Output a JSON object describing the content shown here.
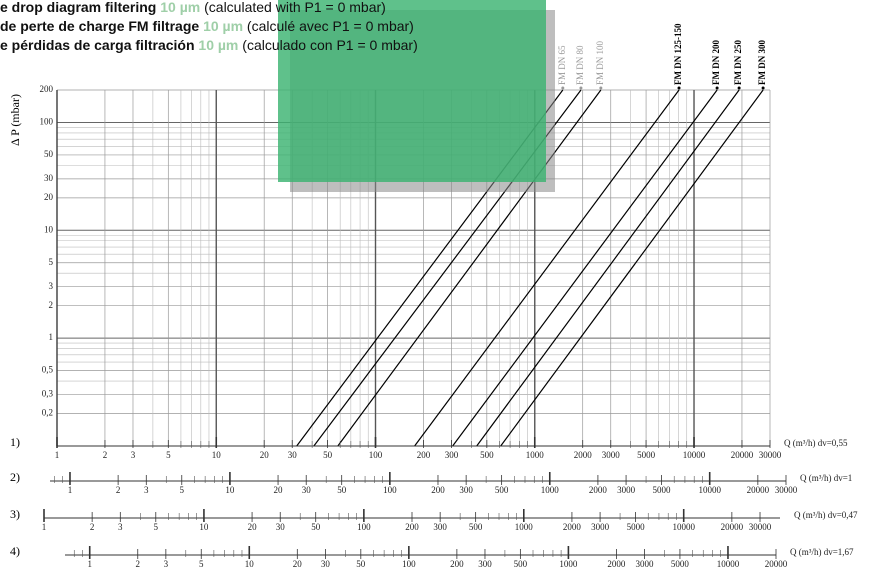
{
  "chart_data": {
    "type": "line",
    "titles": [
      [
        "e drop diagram filtering ",
        "10 µm",
        " (calculated with P1 = 0 mbar)"
      ],
      [
        "de perte de charge FM filtrage ",
        "10 µm",
        " (calculé avec P1 = 0 mbar)"
      ],
      [
        "e pérdidas de carga filtración ",
        "10 µm",
        " (calculado con P1 = 0 mbar)"
      ]
    ],
    "ylabel": "Δ P (mbar)",
    "log_x": true,
    "log_y": true,
    "grid": true,
    "ylim": [
      0.1,
      200
    ],
    "yticks": [
      200,
      100,
      50,
      30,
      20,
      10,
      5,
      3,
      2,
      1,
      {
        "value": 0.5,
        "label": "0,5"
      },
      {
        "value": 0.3,
        "label": "0,3"
      },
      {
        "value": 0.2,
        "label": "0,2"
      }
    ],
    "minor_yticks": [
      0.4,
      0.6,
      0.7,
      0.8,
      0.9,
      4,
      6,
      7,
      8,
      9,
      40,
      60,
      70,
      80,
      90
    ],
    "series": [
      {
        "name": "FM DN 65",
        "color": "#000000",
        "label_color": "#999999",
        "x": [
          32,
          1500
        ],
        "values": [
          0.1,
          200
        ]
      },
      {
        "name": "FM DN 80",
        "color": "#000000",
        "label_color": "#999999",
        "x": [
          41,
          1950
        ],
        "values": [
          0.1,
          200
        ]
      },
      {
        "name": "FM DN 100",
        "color": "#000000",
        "label_color": "#999999",
        "x": [
          58,
          2600
        ],
        "values": [
          0.1,
          200
        ]
      },
      {
        "name": "FM DN 125-150",
        "color": "#000000",
        "label_color": "#000000",
        "x": [
          176,
          8050
        ],
        "values": [
          0.1,
          200
        ]
      },
      {
        "name": "FM DN 200",
        "color": "#000000",
        "label_color": "#000000",
        "x": [
          305,
          13960
        ],
        "values": [
          0.1,
          200
        ]
      },
      {
        "name": "FM DN 250",
        "color": "#000000",
        "label_color": "#000000",
        "x": [
          432,
          19190
        ],
        "values": [
          0.1,
          200
        ]
      },
      {
        "name": "FM DN 300",
        "color": "#000000",
        "label_color": "#000000",
        "x": [
          611,
          27150
        ],
        "values": [
          0.1,
          200
        ]
      }
    ],
    "axes": [
      {
        "label": "1)",
        "title": "Q (m³/h) dv=0,55",
        "xlim": [
          1,
          30000
        ],
        "xticks": [
          1,
          2,
          3,
          5,
          10,
          20,
          30,
          50,
          100,
          200,
          300,
          500,
          1000,
          2000,
          3000,
          5000,
          10000,
          20000,
          30000
        ],
        "minor_xticks": [
          4,
          6,
          7,
          8,
          9,
          40,
          60,
          70,
          80,
          90,
          400,
          600,
          700,
          800,
          900,
          4000,
          6000,
          7000,
          8000,
          9000
        ]
      },
      {
        "label": "2)",
        "title": "Q (m³/h)  dv=1",
        "xlim": [
          0.75,
          30000
        ],
        "xticks": [
          1,
          2,
          3,
          5,
          10,
          20,
          30,
          50,
          100,
          200,
          300,
          500,
          1000,
          2000,
          3000,
          5000,
          10000,
          20000,
          30000
        ],
        "minor_xticks": [
          0.8,
          0.9,
          4,
          6,
          7,
          8,
          9,
          40,
          60,
          70,
          80,
          90,
          400,
          600,
          700,
          800,
          900,
          4000,
          6000,
          7000,
          8000,
          9000
        ]
      },
      {
        "label": "3)",
        "title": "Q (m³/h) dv=0,47",
        "xlim": [
          1,
          40000
        ],
        "xticks": [
          1,
          2,
          3,
          5,
          10,
          20,
          30,
          50,
          100,
          200,
          300,
          500,
          1000,
          2000,
          3000,
          5000,
          10000,
          20000,
          30000
        ],
        "minor_xticks": [
          4,
          6,
          7,
          8,
          9,
          40,
          60,
          70,
          80,
          90,
          400,
          600,
          700,
          800,
          900,
          4000,
          6000,
          7000,
          8000,
          9000
        ]
      },
      {
        "label": "4)",
        "title": "Q (m³/h) dv=1,67",
        "xlim": [
          0.7,
          20000
        ],
        "xticks": [
          1,
          2,
          3,
          5,
          10,
          20,
          30,
          50,
          100,
          200,
          300,
          500,
          1000,
          2000,
          3000,
          5000,
          10000,
          20000
        ],
        "minor_xticks": [
          0.8,
          0.9,
          4,
          6,
          7,
          8,
          9,
          40,
          60,
          70,
          80,
          90,
          400,
          600,
          700,
          800,
          900,
          4000,
          6000,
          7000,
          8000,
          9000
        ]
      }
    ]
  }
}
